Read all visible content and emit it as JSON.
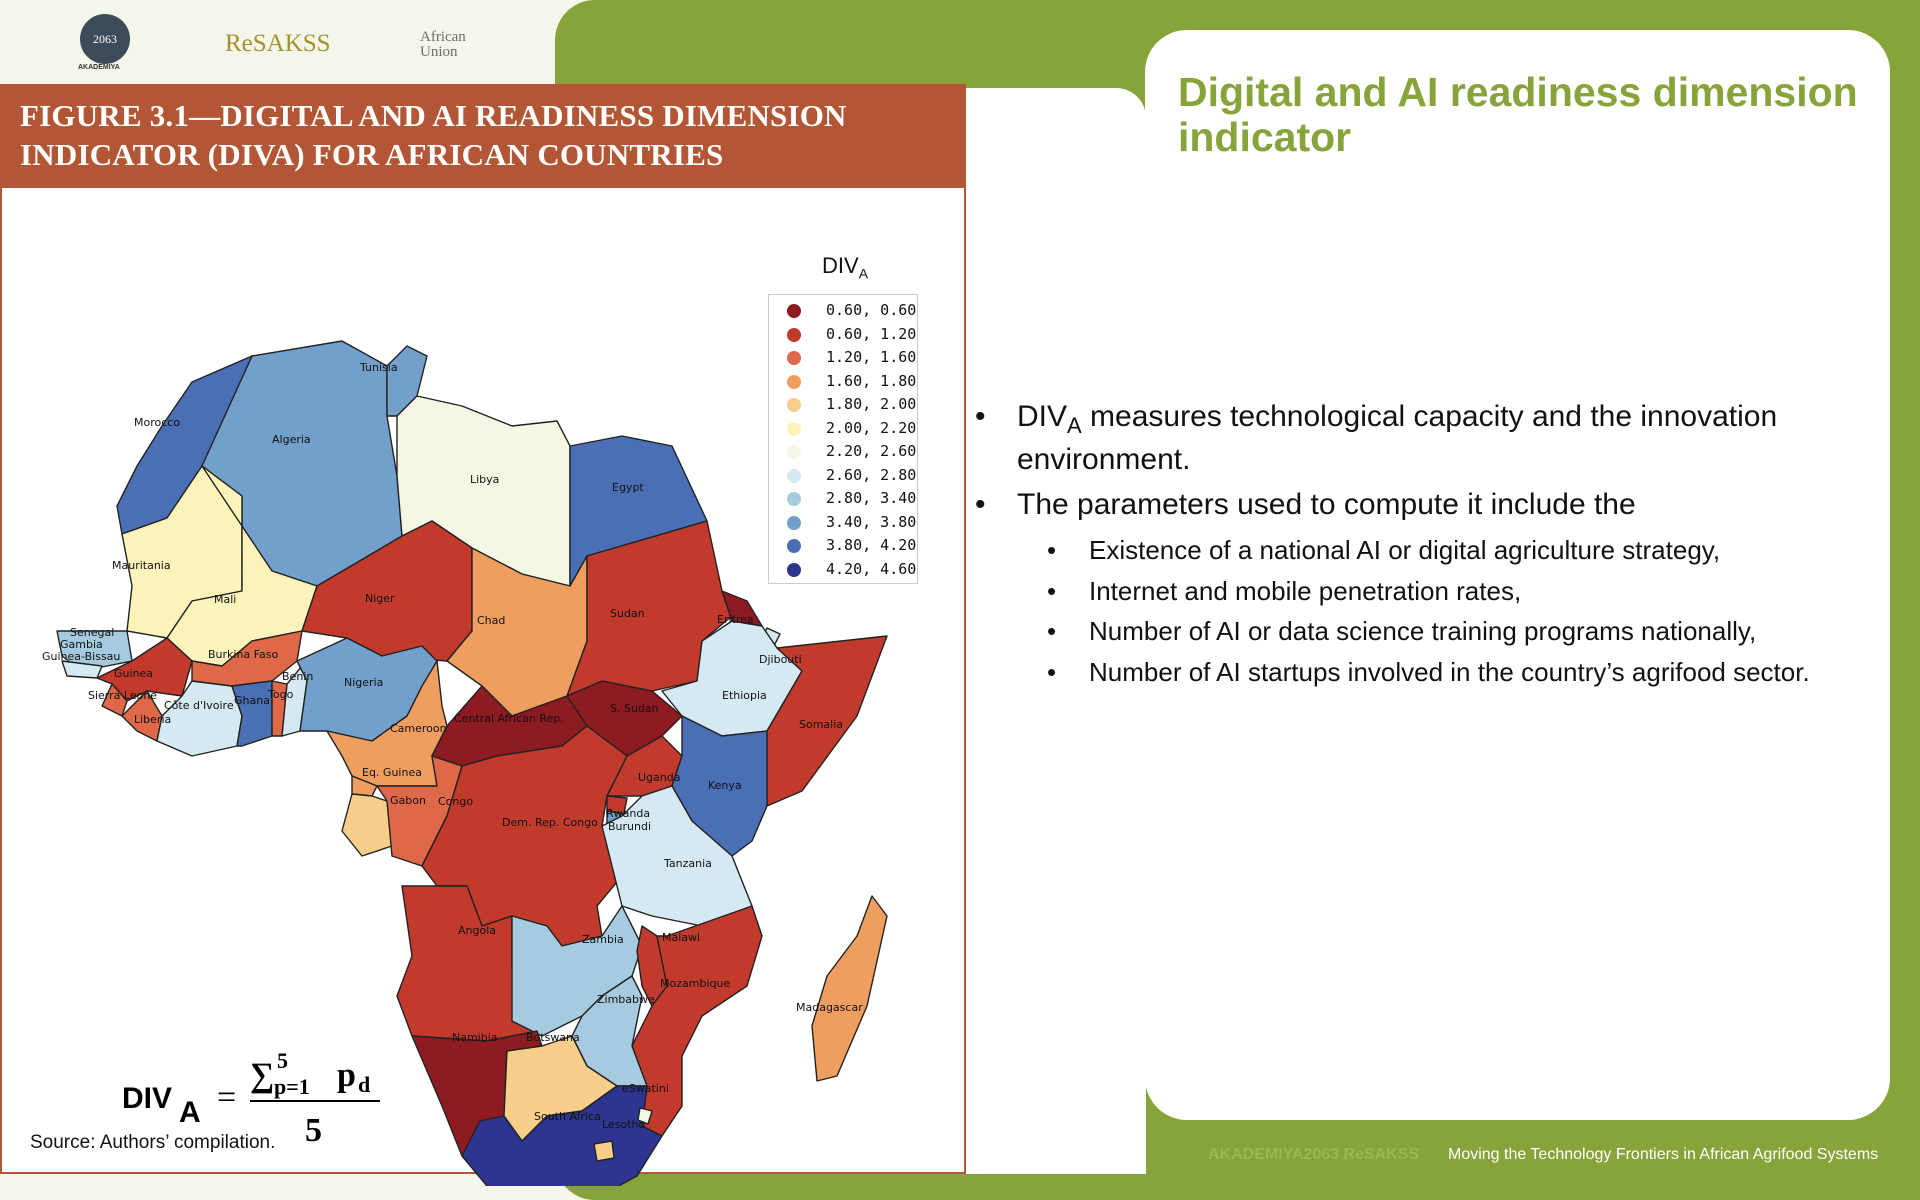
{
  "logos": {
    "akademiya": "AKADEMIYA",
    "akademiya_mark": "2063",
    "resakss": "ReSAKSS",
    "au_line1": "African",
    "au_line2": "Union"
  },
  "figure": {
    "title": "FIGURE 3.1—DIGITAL AND AI READINESS DIMENSION INDICATOR (DIVA) FOR AFRICAN COUNTRIES",
    "legend_title_main": "DIV",
    "legend_title_sub": "A",
    "legend": [
      {
        "label": "0.60, 0.60",
        "color": "#8e1b22"
      },
      {
        "label": "0.60, 1.20",
        "color": "#c23a2c"
      },
      {
        "label": "1.20, 1.60",
        "color": "#df6849"
      },
      {
        "label": "1.60, 1.80",
        "color": "#ef9e60"
      },
      {
        "label": "1.80, 2.00",
        "color": "#f8cf8a"
      },
      {
        "label": "2.00, 2.20",
        "color": "#fbf3ba"
      },
      {
        "label": "2.20, 2.60",
        "color": "#f3f7e3"
      },
      {
        "label": "2.60, 2.80",
        "color": "#d5e9f2"
      },
      {
        "label": "2.80, 3.40",
        "color": "#a6cbe0"
      },
      {
        "label": "3.40, 3.80",
        "color": "#739fcb"
      },
      {
        "label": "3.80, 4.20",
        "color": "#4a6fb5"
      },
      {
        "label": "4.20, 4.60",
        "color": "#2d3591"
      }
    ],
    "countries": {
      "morocco": "Morocco",
      "algeria": "Algeria",
      "tunisia": "Tunisia",
      "libya": "Libya",
      "egypt": "Egypt",
      "mauritania": "Mauritania",
      "mali": "Mali",
      "niger": "Niger",
      "chad": "Chad",
      "sudan": "Sudan",
      "eritrea": "Eritrea",
      "djibouti": "Djibouti",
      "ethiopia": "Ethiopia",
      "somalia": "Somalia",
      "senegal": "Senegal",
      "gambia": "Gambia",
      "guinea_bissau": "Guinea-Bissau",
      "guinea": "Guinea",
      "sierra_leone": "Sierra Leone",
      "liberia": "Liberia",
      "cote": "Côte d'Ivoire",
      "burkina": "Burkina Faso",
      "ghana": "Ghana",
      "togo": "Togo",
      "benin": "Benin",
      "nigeria": "Nigeria",
      "cameroon": "Cameroon",
      "car": "Central African Rep.",
      "ssudan": "S. Sudan",
      "eqguinea": "Eq. Guinea",
      "gabon": "Gabon",
      "congo": "Congo",
      "drc": "Dem. Rep. Congo",
      "uganda": "Uganda",
      "kenya": "Kenya",
      "rwanda": "Rwanda",
      "burundi": "Burundi",
      "tanzania": "Tanzania",
      "angola": "Angola",
      "zambia": "Zambia",
      "malawi": "Malawi",
      "mozambique": "Mozambique",
      "zimbabwe": "Zimbabwe",
      "namibia": "Namibia",
      "botswana": "Botswana",
      "madagascar": "Madagascar",
      "eswatini": "eSwatini",
      "southafrica": "South Africa",
      "lesotho": "Lesotho"
    },
    "formula_lhs": "DIV",
    "formula_lhs_sub": "A",
    "formula_sum": "∑",
    "formula_sum_top": "5",
    "formula_sum_bottom": "p=1",
    "formula_term": "p",
    "formula_term_sub": "d",
    "formula_denominator": "5",
    "source": "Source: Authors’ compilation."
  },
  "slide": {
    "title": "Digital and AI readiness dimension indicator",
    "bullet_symbol": "•",
    "bullet1_pre": "DIV",
    "bullet1_sub": "A",
    "bullet1_post": " measures technological capacity and the innovation environment.",
    "bullet2": "The parameters used to compute it include the",
    "subbullets": [
      "Existence of a national AI or digital agriculture strategy,",
      "Internet and mobile penetration rates,",
      "Number of AI or data science training programs nationally,",
      "Number of AI startups involved in the country’s agrifood sector."
    ]
  },
  "footer": {
    "left": "AKADEMIYA2063 ReSAKSS",
    "right": "Moving the Technology Frontiers in African Agrifood Systems"
  }
}
